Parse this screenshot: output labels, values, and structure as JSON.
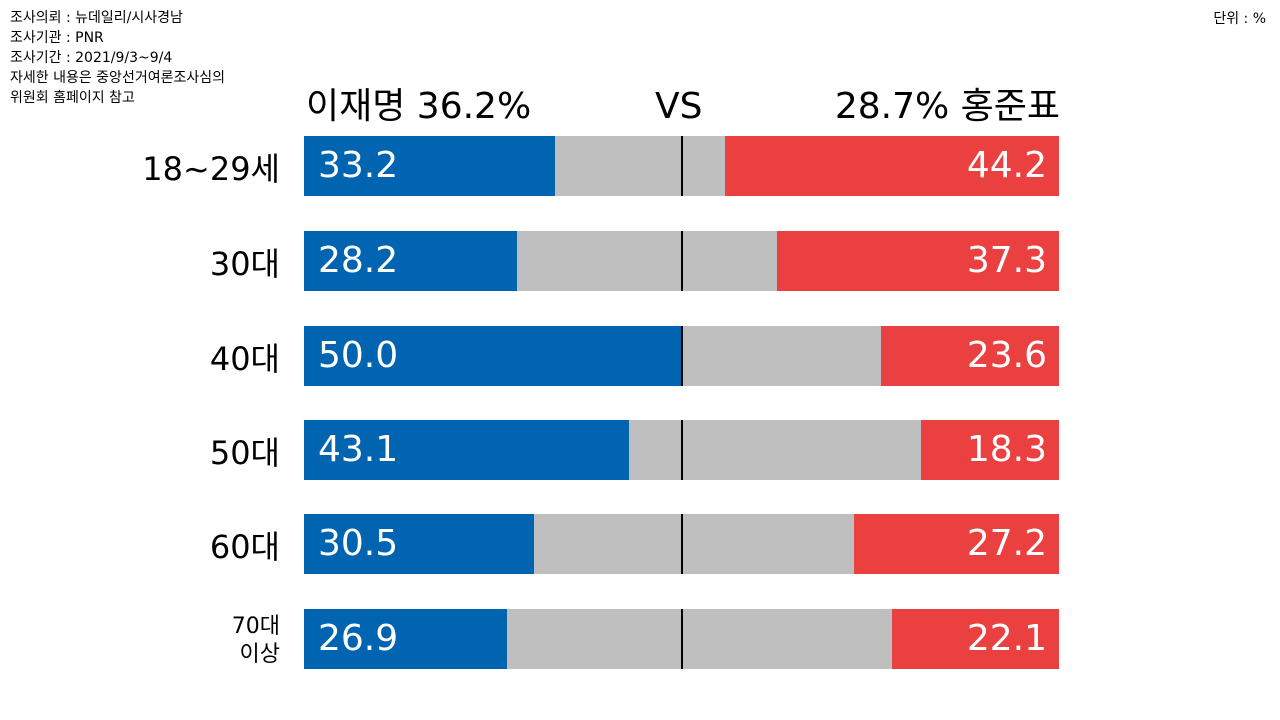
{
  "meta": [
    "조사의뢰 : 뉴데일리/시사경남",
    "조사기관 : PNR",
    "조사기간 : 2021/9/3~9/4",
    "자세한 내용은 중앙선거여론조사심의",
    "위원회 홈페이지 참고"
  ],
  "unit": "단위 : %",
  "chart_data": {
    "type": "bar",
    "title_left": "이재명 36.2%",
    "title_mid": "VS",
    "title_right": "28.7% 홍준표",
    "categories": [
      "18~29세",
      "30대",
      "40대",
      "50대",
      "60대",
      "70대 이상"
    ],
    "category_lines": [
      [
        "18~29세"
      ],
      [
        "30대"
      ],
      [
        "40대"
      ],
      [
        "50대"
      ],
      [
        "60대"
      ],
      [
        "70대",
        "이상"
      ]
    ],
    "series": [
      {
        "name": "이재명",
        "color": "#0064b0",
        "values": [
          33.2,
          28.2,
          50.0,
          43.1,
          30.5,
          26.9
        ],
        "labels": [
          "33.2",
          "28.2",
          "50.0",
          "43.1",
          "30.5",
          "26.9"
        ]
      },
      {
        "name": "홍준표",
        "color": "#eb4040",
        "values": [
          44.2,
          37.3,
          23.6,
          18.3,
          27.2,
          22.1
        ],
        "labels": [
          "44.2",
          "37.3",
          "23.6",
          "18.3",
          "27.2",
          "22.1"
        ]
      }
    ],
    "xlim": [
      0,
      100
    ]
  }
}
